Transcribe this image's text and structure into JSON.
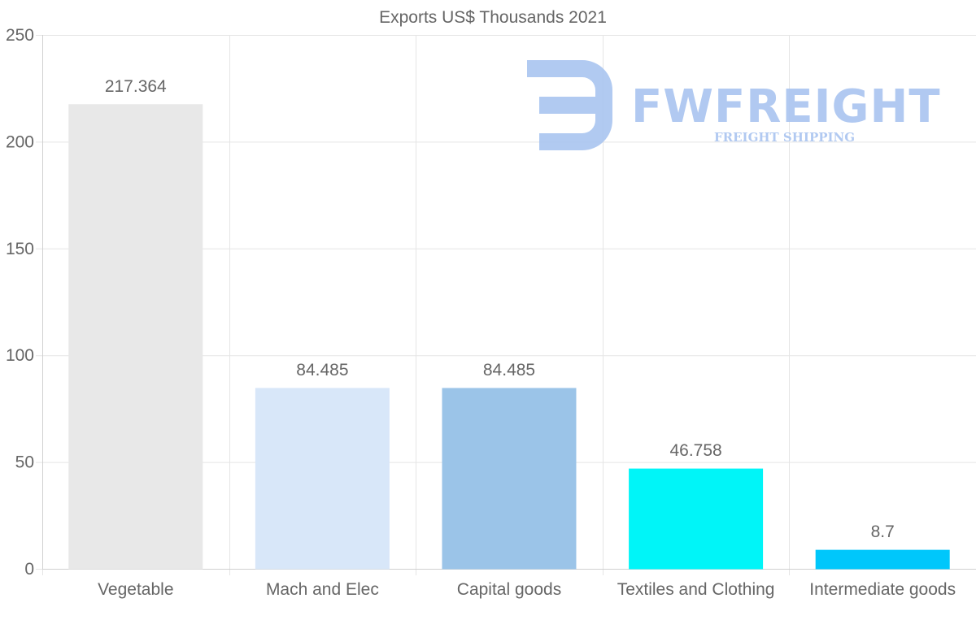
{
  "chart_data": {
    "type": "bar",
    "title": "Exports US$ Thousands 2021",
    "categories": [
      "Vegetable",
      "Mach and Elec",
      "Capital goods",
      "Textiles and Clothing",
      "Intermediate goods"
    ],
    "values": [
      217.364,
      84.485,
      84.485,
      46.758,
      8.7
    ],
    "value_labels": [
      "217.364",
      "84.485",
      "84.485",
      "46.758",
      "8.7"
    ],
    "colors": [
      "#e8e8e8",
      "#d8e7f9",
      "#9bc4e8",
      "#00f5f8",
      "#00c7fb"
    ],
    "ylim": [
      0,
      250
    ],
    "yticks": [
      0,
      50,
      100,
      150,
      200,
      250
    ],
    "ytick_labels": [
      "0",
      "50",
      "100",
      "150",
      "200",
      "250"
    ],
    "xlabel": "",
    "ylabel": "",
    "grid": true,
    "legend": "none"
  },
  "watermark": {
    "brand": "FWFREIGHT",
    "tagline": "FREIGHT SHIPPING",
    "color": "#a9c4f0"
  }
}
